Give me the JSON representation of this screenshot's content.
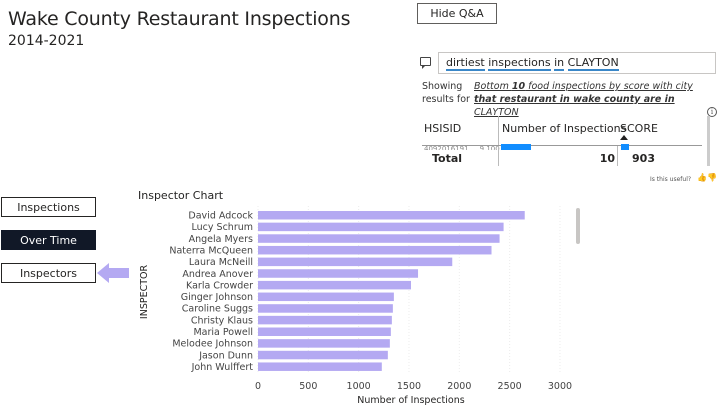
{
  "header": {
    "title": "Wake County Restaurant Inspections",
    "subtitle": "2014-2021"
  },
  "qa": {
    "hide_label": "Hide Q&A",
    "query_words": [
      "dirtiest",
      "inspections",
      "in",
      "CLAYTON"
    ],
    "showing_label": "Showing results for",
    "restatement_prefix": "Bottom ",
    "restatement_n": "10",
    "restatement_mid": " food inspections by score with city ",
    "restatement_that": "that restaurant in wake county are in",
    "restatement_city": " CLAYTON",
    "table": {
      "columns": [
        "HSISID",
        "Number of Inspections",
        "SCORE"
      ],
      "partial_row": "4092016191 ...  9  100",
      "total_label": "Total",
      "total_inspections": "10",
      "total_score": "903"
    },
    "useful_label": "Is this useful?"
  },
  "nav": {
    "inspections": "Inspections",
    "over_time": "Over Time",
    "inspectors": "Inspectors"
  },
  "chart": {
    "title": "Inspector Chart"
  },
  "chart_data": {
    "type": "bar",
    "orientation": "horizontal",
    "title": "Inspector Chart",
    "ylabel": "INSPECTOR",
    "xlabel": "Number of Inspections",
    "xlim": [
      0,
      3000
    ],
    "xticks": [
      0,
      500,
      1000,
      1500,
      2000,
      2500,
      3000
    ],
    "grid": true,
    "bar_color": "#b4a9f2",
    "categories": [
      "David Adcock",
      "Lucy Schrum",
      "Angela Myers",
      "Naterra McQueen",
      "Laura McNeill",
      "Andrea Anover",
      "Karla Crowder",
      "Ginger Johnson",
      "Caroline Suggs",
      "Christy Klaus",
      "Maria Powell",
      "Melodee Johnson",
      "Jason Dunn",
      "John Wulffert"
    ],
    "values": [
      2650,
      2440,
      2400,
      2320,
      1930,
      1590,
      1520,
      1350,
      1340,
      1330,
      1320,
      1310,
      1290,
      1230
    ]
  },
  "colors": {
    "accent": "#118dff",
    "active_nav": "#111827",
    "bar": "#b4a9f2",
    "arrow": "#b4a9f2"
  }
}
